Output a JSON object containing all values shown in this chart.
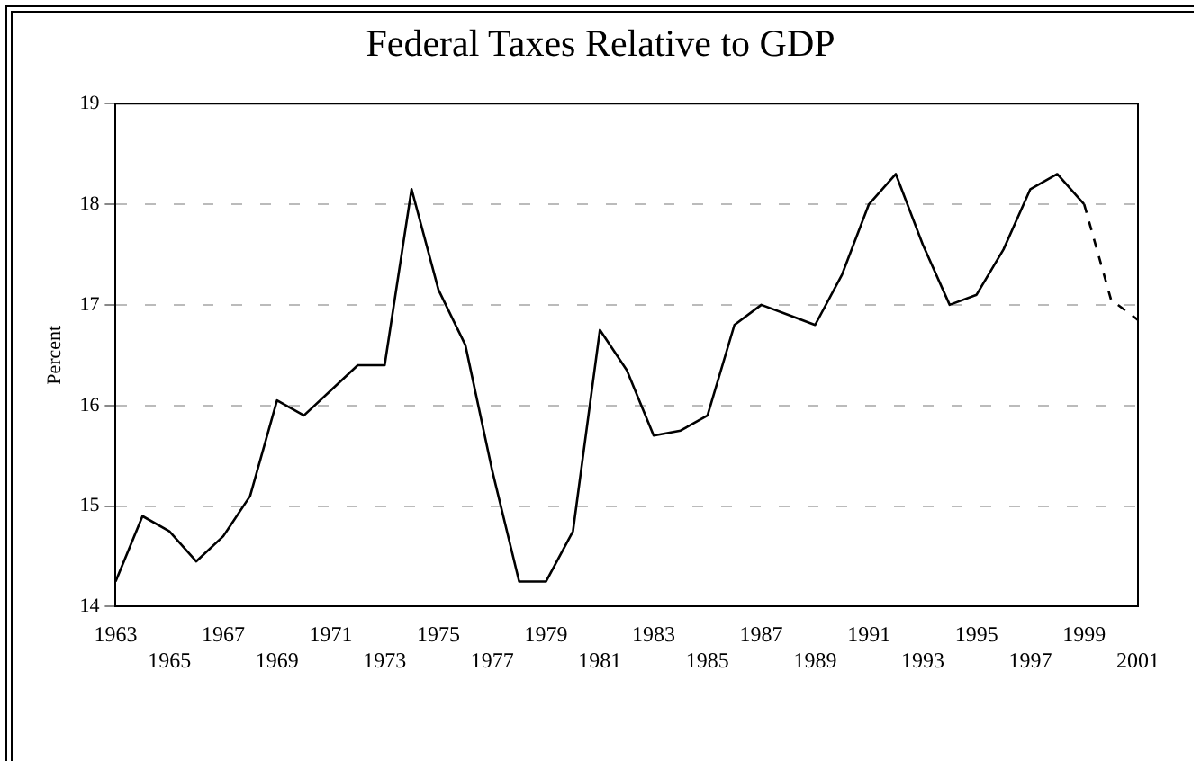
{
  "chart_data": {
    "type": "line",
    "title": "Federal Taxes Relative to GDP",
    "ylabel": "Percent",
    "categories": [
      "1963",
      null,
      "1965",
      null,
      "1967",
      null,
      "1969",
      null,
      "1971",
      null,
      "1973",
      null,
      "1975",
      null,
      "1977",
      null,
      "1979",
      null,
      "1981",
      null,
      "1983",
      null,
      "1985",
      null,
      "1987",
      null,
      "1989",
      null,
      "1991",
      null,
      "1993",
      null,
      "1995",
      null,
      "1997",
      null,
      "1999",
      null,
      "2001"
    ],
    "series": [
      {
        "color": "#000000",
        "line_style": "solid",
        "values": [
          14.25,
          14.9,
          14.75,
          14.45,
          14.7,
          15.1,
          16.05,
          15.9,
          16.15,
          16.4,
          16.4,
          18.15,
          17.15,
          16.6,
          15.35,
          14.25,
          14.25,
          14.75,
          16.75,
          16.35,
          15.7,
          15.75,
          15.9,
          16.8,
          17.0,
          16.9,
          16.8,
          17.3,
          18.0,
          18.3,
          17.6,
          17.0,
          17.1,
          17.55,
          18.15,
          18.3,
          18.0,
          null,
          null
        ]
      },
      {
        "color": "#000000",
        "line_style": "dashed",
        "values": [
          null,
          null,
          null,
          null,
          null,
          null,
          null,
          null,
          null,
          null,
          null,
          null,
          null,
          null,
          null,
          null,
          null,
          null,
          null,
          null,
          null,
          null,
          null,
          null,
          null,
          null,
          null,
          null,
          null,
          null,
          null,
          null,
          null,
          null,
          null,
          null,
          18.0,
          17.05,
          16.85
        ]
      }
    ],
    "ylim": [
      14,
      19
    ],
    "yticks": [
      14,
      15,
      16,
      17,
      18,
      19
    ],
    "grid": "y",
    "marker": "none",
    "legend": false
  }
}
